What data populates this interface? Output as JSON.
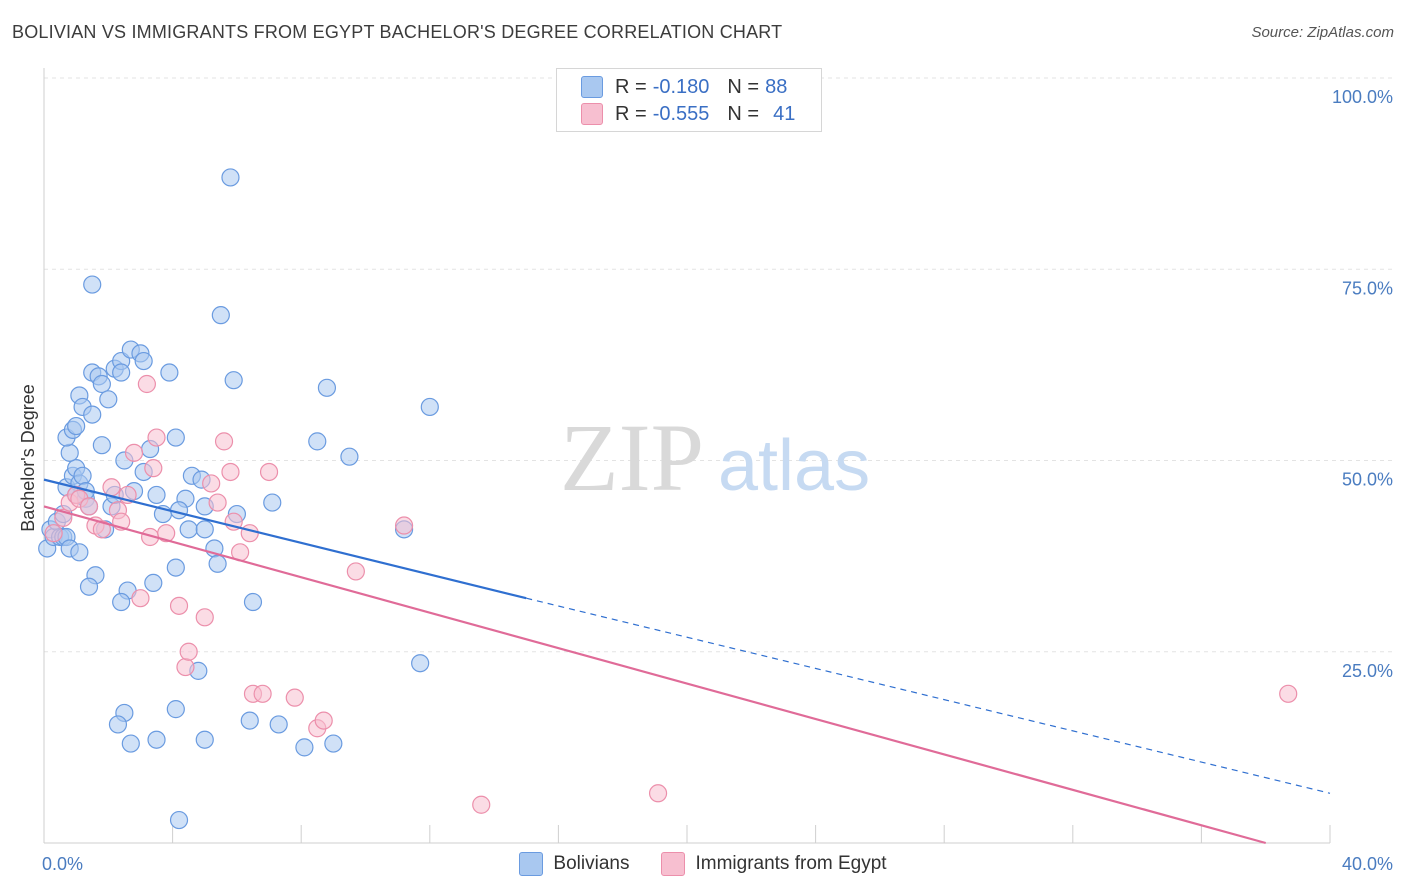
{
  "title": "BOLIVIAN VS IMMIGRANTS FROM EGYPT BACHELOR'S DEGREE CORRELATION CHART",
  "source": "Source: ZipAtlas.com",
  "watermark": {
    "zip": "ZIP",
    "atlas": "atlas"
  },
  "colors": {
    "blue_fill": "#a9c8f0",
    "blue_stroke": "#6a9be0",
    "blue_line": "#2f6fd0",
    "pink_fill": "#f7bfd0",
    "pink_stroke": "#ec8fab",
    "pink_line": "#e06b98",
    "grid": "#e3e3e3",
    "axis_text": "#4a7cc0"
  },
  "legend": {
    "rows": [
      {
        "r_label": "R =",
        "r_value": "-0.180",
        "n_label": "N =",
        "n_value": "88"
      },
      {
        "r_label": "R =",
        "r_value": "-0.555",
        "n_label": "N =",
        "n_value": "41"
      }
    ]
  },
  "bottom_legend": [
    "Bolivians",
    "Immigrants from Egypt"
  ],
  "chart_data": {
    "type": "scatter",
    "title": "BOLIVIAN VS IMMIGRANTS FROM EGYPT BACHELOR'S DEGREE CORRELATION CHART",
    "xlabel": "",
    "ylabel": "Bachelor's Degree",
    "xlim": [
      0,
      40
    ],
    "ylim": [
      0,
      100
    ],
    "x_tick_labels": [
      "0.0%",
      "40.0%"
    ],
    "y_ticks": [
      25,
      50,
      75,
      100
    ],
    "y_tick_labels": [
      "25.0%",
      "50.0%",
      "75.0%",
      "100.0%"
    ],
    "grid": true,
    "legend_position": "top-center",
    "series": [
      {
        "name": "Bolivians",
        "r": -0.18,
        "n": 88,
        "trend": {
          "x0": 0,
          "y0": 47.5,
          "x1_solid": 15,
          "y1_solid": 32.0,
          "x1_dashed": 40,
          "y1_dashed": 6.5
        },
        "points": [
          [
            0.1,
            38.5
          ],
          [
            0.2,
            41
          ],
          [
            0.3,
            40
          ],
          [
            0.4,
            42
          ],
          [
            0.5,
            40
          ],
          [
            0.6,
            40
          ],
          [
            0.7,
            40
          ],
          [
            0.8,
            38.5
          ],
          [
            0.6,
            43
          ],
          [
            0.7,
            46.5
          ],
          [
            0.9,
            48
          ],
          [
            1.0,
            49
          ],
          [
            1.1,
            47
          ],
          [
            1.2,
            48
          ],
          [
            1.3,
            45
          ],
          [
            1.0,
            45.5
          ],
          [
            1.4,
            44
          ],
          [
            0.8,
            51
          ],
          [
            0.7,
            53
          ],
          [
            0.9,
            54
          ],
          [
            1.0,
            54.5
          ],
          [
            1.1,
            58.5
          ],
          [
            1.2,
            57
          ],
          [
            1.5,
            56
          ],
          [
            1.5,
            61.5
          ],
          [
            1.7,
            61
          ],
          [
            1.8,
            60
          ],
          [
            2.0,
            58
          ],
          [
            2.2,
            62
          ],
          [
            2.4,
            63
          ],
          [
            2.7,
            64.5
          ],
          [
            3.0,
            64
          ],
          [
            3.1,
            63
          ],
          [
            3.9,
            61.5
          ],
          [
            1.5,
            73
          ],
          [
            1.8,
            52
          ],
          [
            2.5,
            50
          ],
          [
            3.3,
            51.5
          ],
          [
            4.1,
            53
          ],
          [
            2.8,
            46
          ],
          [
            3.5,
            45.5
          ],
          [
            4.4,
            45
          ],
          [
            3.7,
            43
          ],
          [
            4.2,
            43.5
          ],
          [
            5.0,
            44
          ],
          [
            4.6,
            48
          ],
          [
            4.9,
            47.5
          ],
          [
            5.3,
            38.5
          ],
          [
            4.5,
            41
          ],
          [
            5.0,
            41
          ],
          [
            5.4,
            36.5
          ],
          [
            4.1,
            36
          ],
          [
            3.4,
            34
          ],
          [
            2.6,
            33
          ],
          [
            2.4,
            31.5
          ],
          [
            1.6,
            35
          ],
          [
            1.4,
            33.5
          ],
          [
            1.1,
            38
          ],
          [
            1.9,
            41
          ],
          [
            2.1,
            44
          ],
          [
            6.0,
            43
          ],
          [
            6.5,
            31.5
          ],
          [
            7.1,
            44.5
          ],
          [
            5.9,
            60.5
          ],
          [
            5.5,
            69
          ],
          [
            5.8,
            87
          ],
          [
            8.8,
            59.5
          ],
          [
            8.5,
            52.5
          ],
          [
            9.5,
            50.5
          ],
          [
            12.0,
            57
          ],
          [
            11.2,
            41
          ],
          [
            11.7,
            23.5
          ],
          [
            4.8,
            22.5
          ],
          [
            4.1,
            17.5
          ],
          [
            3.5,
            13.5
          ],
          [
            2.7,
            13
          ],
          [
            2.5,
            17
          ],
          [
            2.3,
            15.5
          ],
          [
            5.0,
            13.5
          ],
          [
            6.4,
            16
          ],
          [
            7.3,
            15.5
          ],
          [
            8.1,
            12.5
          ],
          [
            9.0,
            13
          ],
          [
            4.2,
            3
          ],
          [
            2.4,
            61.5
          ],
          [
            3.1,
            48.5
          ],
          [
            2.2,
            45.5
          ],
          [
            1.3,
            46
          ]
        ]
      },
      {
        "name": "Immigrants from Egypt",
        "r": -0.555,
        "n": 41,
        "trend": {
          "x0": 0,
          "y0": 44.0,
          "x1_solid": 38,
          "y1_solid": 0.0
        },
        "points": [
          [
            0.3,
            40.5
          ],
          [
            0.6,
            42.5
          ],
          [
            0.8,
            44.5
          ],
          [
            1.0,
            45.5
          ],
          [
            1.1,
            45
          ],
          [
            1.4,
            44
          ],
          [
            1.6,
            41.5
          ],
          [
            1.8,
            41
          ],
          [
            2.1,
            46.5
          ],
          [
            2.3,
            43.5
          ],
          [
            2.4,
            42
          ],
          [
            2.6,
            45.5
          ],
          [
            2.8,
            51
          ],
          [
            3.4,
            49
          ],
          [
            3.5,
            53
          ],
          [
            3.2,
            60
          ],
          [
            3.3,
            40
          ],
          [
            3.8,
            40.5
          ],
          [
            4.2,
            31
          ],
          [
            4.4,
            23
          ],
          [
            4.5,
            25
          ],
          [
            5.0,
            29.5
          ],
          [
            5.2,
            47
          ],
          [
            5.4,
            44.5
          ],
          [
            5.6,
            52.5
          ],
          [
            5.8,
            48.5
          ],
          [
            5.9,
            42
          ],
          [
            6.1,
            38
          ],
          [
            6.4,
            40.5
          ],
          [
            6.5,
            19.5
          ],
          [
            6.8,
            19.5
          ],
          [
            7.0,
            48.5
          ],
          [
            7.8,
            19
          ],
          [
            8.5,
            15
          ],
          [
            8.7,
            16
          ],
          [
            9.7,
            35.5
          ],
          [
            11.2,
            41.5
          ],
          [
            13.6,
            5
          ],
          [
            19.1,
            6.5
          ],
          [
            38.7,
            19.5
          ],
          [
            3.0,
            32
          ]
        ]
      }
    ]
  }
}
